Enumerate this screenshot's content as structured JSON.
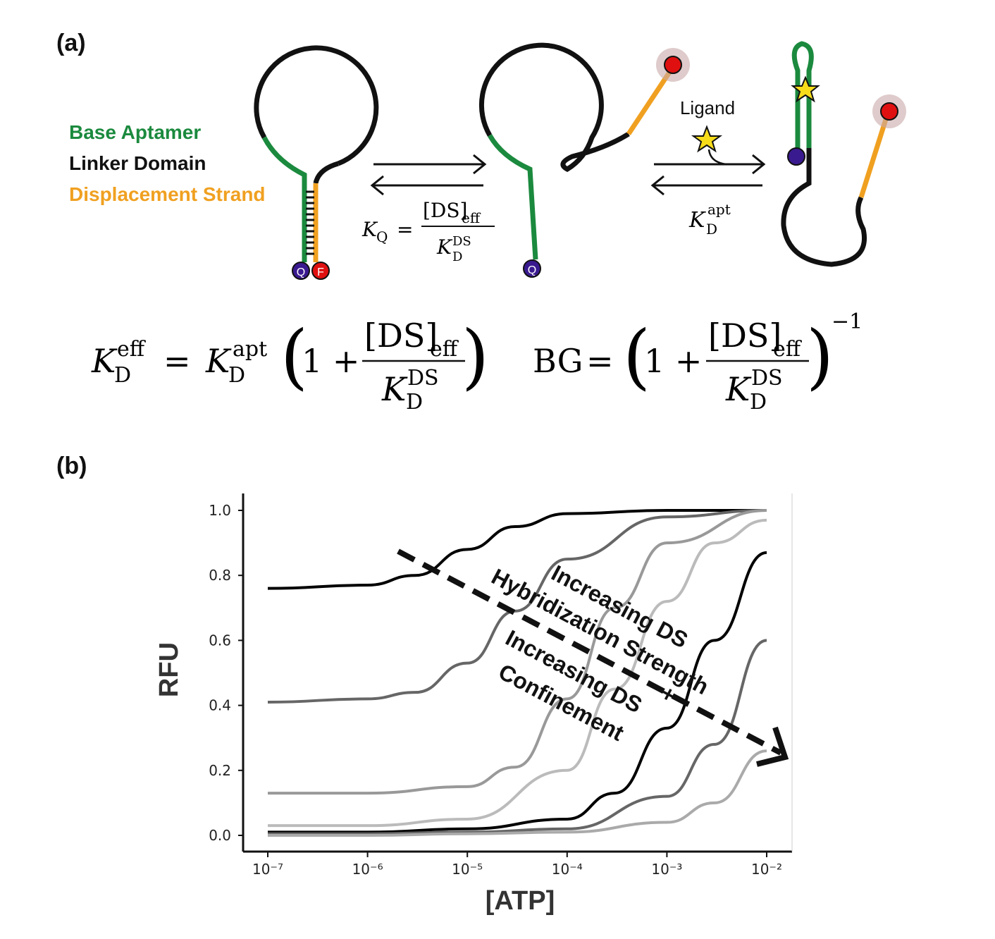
{
  "figure": {
    "panel_a": "(a)",
    "panel_b": "(b)",
    "legend": [
      {
        "label": "Base Aptamer",
        "color": "#1b8a3e"
      },
      {
        "label": "Linker Domain",
        "color": "#111111"
      },
      {
        "label": "Displacement Strand",
        "color": "#f0a020"
      }
    ],
    "quencher_label": "Q",
    "fluorophore_label": "F",
    "ligand_label": "Ligand",
    "colors": {
      "aptamer": "#1b8a3e",
      "linker": "#111111",
      "displacement": "#f0a020",
      "quencher": "#3a1a8f",
      "fluorophore": "#e01010",
      "ligand": "#f7dc1a"
    },
    "equations": {
      "kq": "K_Q = [DS]_eff / K_D^DS",
      "kd_apt": "K_D^apt",
      "kd_eff": "K_D^eff = K_D^apt (1 + [DS]_eff / K_D^DS)",
      "bg": "BG = (1 + [DS]_eff / K_D^DS)^-1"
    }
  },
  "chart_data": {
    "type": "line",
    "xlabel": "[ATP]",
    "ylabel": "RFU",
    "xscale": "log",
    "xlim": [
      1e-07,
      0.01
    ],
    "ylim": [
      0.0,
      1.0
    ],
    "xtick_labels": [
      "10⁻⁷",
      "10⁻⁶",
      "10⁻⁵",
      "10⁻⁴",
      "10⁻³",
      "10⁻²"
    ],
    "ytick_labels": [
      "0.0",
      "0.2",
      "0.4",
      "0.6",
      "0.8",
      "1.0"
    ],
    "annotations": [
      "Increasing DS Hybridization Strength",
      "+",
      "Increasing DS Confinement"
    ],
    "series": [
      {
        "color": "#000000",
        "x": [
          1e-07,
          1e-06,
          3e-06,
          1e-05,
          3e-05,
          0.0001,
          0.001,
          0.01
        ],
        "values": [
          0.76,
          0.77,
          0.8,
          0.88,
          0.95,
          0.99,
          1.0,
          1.0
        ]
      },
      {
        "color": "#666666",
        "x": [
          1e-07,
          1e-06,
          3e-06,
          1e-05,
          3e-05,
          0.0001,
          0.001,
          0.01
        ],
        "values": [
          0.41,
          0.42,
          0.44,
          0.53,
          0.69,
          0.85,
          0.98,
          1.0
        ]
      },
      {
        "color": "#999999",
        "x": [
          1e-07,
          1e-06,
          1e-05,
          3e-05,
          0.0001,
          0.0003,
          0.001,
          0.01
        ],
        "values": [
          0.13,
          0.13,
          0.15,
          0.21,
          0.42,
          0.7,
          0.9,
          1.0
        ]
      },
      {
        "color": "#bbbbbb",
        "x": [
          1e-07,
          1e-06,
          1e-05,
          0.0001,
          0.0003,
          0.001,
          0.003,
          0.01
        ],
        "values": [
          0.03,
          0.03,
          0.05,
          0.2,
          0.45,
          0.72,
          0.9,
          0.97
        ]
      },
      {
        "color": "#000000",
        "x": [
          1e-07,
          1e-06,
          1e-05,
          0.0001,
          0.0003,
          0.001,
          0.003,
          0.01
        ],
        "values": [
          0.01,
          0.01,
          0.02,
          0.05,
          0.13,
          0.33,
          0.6,
          0.87
        ]
      },
      {
        "color": "#666666",
        "x": [
          1e-07,
          1e-06,
          1e-05,
          0.0001,
          0.001,
          0.003,
          0.01
        ],
        "values": [
          0.005,
          0.005,
          0.01,
          0.02,
          0.12,
          0.28,
          0.6
        ]
      },
      {
        "color": "#aaaaaa",
        "x": [
          1e-07,
          1e-06,
          1e-05,
          0.0001,
          0.001,
          0.003,
          0.01
        ],
        "values": [
          0.0,
          0.0,
          0.005,
          0.01,
          0.04,
          0.1,
          0.26
        ]
      }
    ]
  }
}
